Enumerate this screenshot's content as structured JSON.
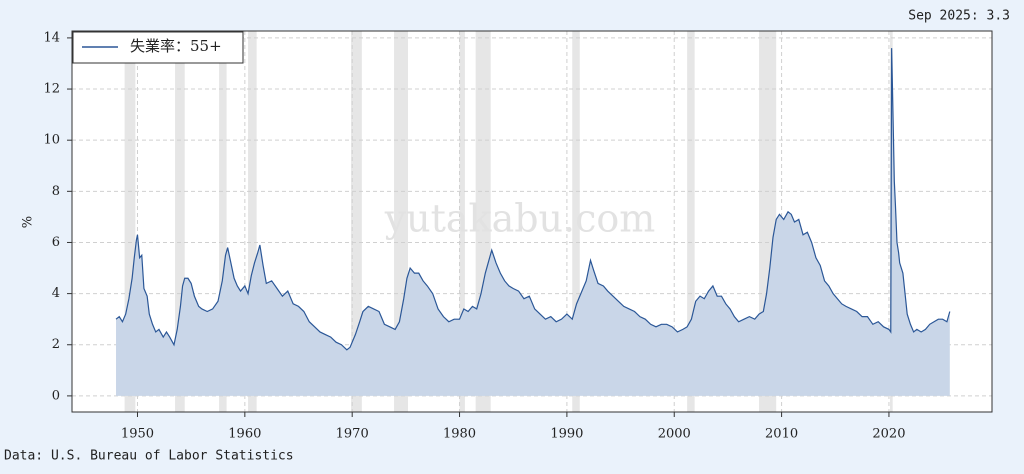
{
  "chart_data": {
    "type": "line",
    "y_label": "%",
    "annotation": "Sep 2025: 3.3",
    "source": "Data: U.S. Bureau of Labor Statistics",
    "watermark": "yutakabu.com",
    "xlim": [
      1943.9,
      2029.6
    ],
    "ylim": [
      -0.63,
      14.27
    ],
    "xticks": [
      1950,
      1960,
      1970,
      1980,
      1990,
      2000,
      2010,
      2020
    ],
    "yticks": [
      0,
      2,
      4,
      6,
      8,
      10,
      12,
      14
    ],
    "grid": true,
    "legend": "upper left",
    "fill_area": true,
    "recessions": [
      [
        1948.8,
        1949.8
      ],
      [
        1953.5,
        1954.4
      ],
      [
        1957.6,
        1958.3
      ],
      [
        1960.3,
        1961.1
      ],
      [
        1969.9,
        1970.9
      ],
      [
        1973.9,
        1975.2
      ],
      [
        1980.0,
        1980.5
      ],
      [
        1981.5,
        1982.9
      ],
      [
        1990.5,
        1991.2
      ],
      [
        2001.2,
        2001.9
      ],
      [
        2007.9,
        2009.5
      ],
      [
        2020.1,
        2020.35
      ]
    ],
    "x": [
      1948.0,
      1948.3,
      1948.6,
      1948.9,
      1949.2,
      1949.5,
      1949.7,
      1949.9,
      1950.0,
      1950.2,
      1950.4,
      1950.6,
      1950.9,
      1951.1,
      1951.4,
      1951.7,
      1952.0,
      1952.4,
      1952.7,
      1953.0,
      1953.4,
      1953.7,
      1954.0,
      1954.2,
      1954.4,
      1954.7,
      1955.0,
      1955.3,
      1955.7,
      1956.0,
      1956.5,
      1957.0,
      1957.5,
      1957.9,
      1958.2,
      1958.4,
      1958.7,
      1959.0,
      1959.3,
      1959.6,
      1960.0,
      1960.3,
      1960.6,
      1960.9,
      1961.2,
      1961.4,
      1961.7,
      1962.0,
      1962.5,
      1963.0,
      1963.5,
      1964.0,
      1964.5,
      1965.0,
      1965.5,
      1966.0,
      1966.5,
      1967.0,
      1967.5,
      1968.0,
      1968.5,
      1969.0,
      1969.5,
      1969.8,
      1970.3,
      1970.7,
      1971.0,
      1971.5,
      1972.0,
      1972.5,
      1973.0,
      1973.5,
      1974.0,
      1974.4,
      1974.8,
      1975.1,
      1975.4,
      1975.8,
      1976.2,
      1976.6,
      1977.0,
      1977.5,
      1978.0,
      1978.5,
      1979.0,
      1979.5,
      1980.0,
      1980.4,
      1980.8,
      1981.2,
      1981.6,
      1982.0,
      1982.4,
      1982.8,
      1983.0,
      1983.4,
      1983.8,
      1984.2,
      1984.6,
      1985.0,
      1985.5,
      1986.0,
      1986.5,
      1987.0,
      1987.5,
      1988.0,
      1988.5,
      1989.0,
      1989.5,
      1990.0,
      1990.5,
      1990.9,
      1991.3,
      1991.8,
      1992.2,
      1992.5,
      1992.9,
      1993.4,
      1993.8,
      1994.3,
      1994.8,
      1995.3,
      1995.8,
      1996.3,
      1996.8,
      1997.3,
      1997.8,
      1998.3,
      1998.8,
      1999.3,
      1999.8,
      2000.3,
      2000.8,
      2001.2,
      2001.6,
      2002.0,
      2002.4,
      2002.8,
      2003.2,
      2003.6,
      2004.0,
      2004.4,
      2004.8,
      2005.2,
      2005.6,
      2006.0,
      2006.5,
      2007.0,
      2007.5,
      2007.9,
      2008.3,
      2008.6,
      2008.9,
      2009.2,
      2009.5,
      2009.8,
      2010.2,
      2010.6,
      2010.9,
      2011.2,
      2011.6,
      2012.0,
      2012.4,
      2012.8,
      2013.2,
      2013.6,
      2014.0,
      2014.4,
      2014.8,
      2015.2,
      2015.6,
      2016.0,
      2016.5,
      2017.0,
      2017.5,
      2018.0,
      2018.5,
      2019.0,
      2019.5,
      2020.0,
      2020.17,
      2020.25,
      2020.33,
      2020.5,
      2020.6,
      2020.75,
      2020.9,
      2021.0,
      2021.3,
      2021.5,
      2021.7,
      2022.0,
      2022.3,
      2022.6,
      2023.0,
      2023.4,
      2023.8,
      2024.2,
      2024.6,
      2025.0,
      2025.4,
      2025.67
    ],
    "series": [
      {
        "name": "失業率：55+",
        "color": "#2b5797",
        "fill": "#c9d6e8",
        "values": [
          3.0,
          3.1,
          2.9,
          3.2,
          3.8,
          4.6,
          5.4,
          6.1,
          6.3,
          5.4,
          5.5,
          4.2,
          3.9,
          3.2,
          2.8,
          2.5,
          2.6,
          2.3,
          2.5,
          2.3,
          2.0,
          2.6,
          3.5,
          4.3,
          4.6,
          4.6,
          4.4,
          3.9,
          3.5,
          3.4,
          3.3,
          3.4,
          3.7,
          4.5,
          5.5,
          5.8,
          5.2,
          4.6,
          4.3,
          4.1,
          4.3,
          4.0,
          4.7,
          5.2,
          5.6,
          5.9,
          5.1,
          4.4,
          4.5,
          4.2,
          3.9,
          4.1,
          3.6,
          3.5,
          3.3,
          2.9,
          2.7,
          2.5,
          2.4,
          2.3,
          2.1,
          2.0,
          1.8,
          1.9,
          2.4,
          2.9,
          3.3,
          3.5,
          3.4,
          3.3,
          2.8,
          2.7,
          2.6,
          2.9,
          3.8,
          4.6,
          5.0,
          4.8,
          4.8,
          4.5,
          4.3,
          4.0,
          3.4,
          3.1,
          2.9,
          3.0,
          3.0,
          3.4,
          3.3,
          3.5,
          3.4,
          4.0,
          4.8,
          5.4,
          5.7,
          5.2,
          4.8,
          4.5,
          4.3,
          4.2,
          4.1,
          3.8,
          3.9,
          3.4,
          3.2,
          3.0,
          3.1,
          2.9,
          3.0,
          3.2,
          3.0,
          3.6,
          4.0,
          4.5,
          5.3,
          4.9,
          4.4,
          4.3,
          4.1,
          3.9,
          3.7,
          3.5,
          3.4,
          3.3,
          3.1,
          3.0,
          2.8,
          2.7,
          2.8,
          2.8,
          2.7,
          2.5,
          2.6,
          2.7,
          3.0,
          3.7,
          3.9,
          3.8,
          4.1,
          4.3,
          3.9,
          3.9,
          3.6,
          3.4,
          3.1,
          2.9,
          3.0,
          3.1,
          3.0,
          3.2,
          3.3,
          4.0,
          5.0,
          6.2,
          6.9,
          7.1,
          6.9,
          7.2,
          7.1,
          6.8,
          6.9,
          6.3,
          6.4,
          6.0,
          5.4,
          5.1,
          4.5,
          4.3,
          4.0,
          3.8,
          3.6,
          3.5,
          3.4,
          3.3,
          3.1,
          3.1,
          2.8,
          2.9,
          2.7,
          2.6,
          2.5,
          13.6,
          12.0,
          8.4,
          7.5,
          6.0,
          5.6,
          5.2,
          4.8,
          4.0,
          3.2,
          2.8,
          2.5,
          2.6,
          2.5,
          2.6,
          2.8,
          2.9,
          3.0,
          3.0,
          2.9,
          3.3
        ]
      }
    ]
  }
}
